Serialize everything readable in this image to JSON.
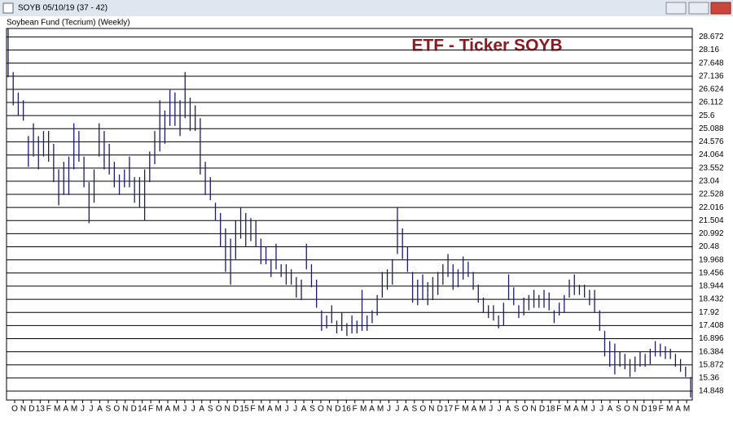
{
  "window_title": "SOYB 05/10/19 (37 - 42)",
  "chart_data": {
    "type": "hl-bar",
    "title": "Soybean Fund (Tecrium) (Weekly)",
    "annotation": "ETF - Ticker SOYB",
    "color": "#1c1c6b",
    "grid": true,
    "ylim": [
      14.5,
      29.0
    ],
    "yticks": [
      28.672,
      28.16,
      27.648,
      27.136,
      26.624,
      26.112,
      25.6,
      25.088,
      24.576,
      24.064,
      23.552,
      23.04,
      22.528,
      22.016,
      21.504,
      20.992,
      20.48,
      19.968,
      19.456,
      18.944,
      18.432,
      17.92,
      17.408,
      16.896,
      16.384,
      15.872,
      15.36,
      14.848
    ],
    "x_labels": [
      "O",
      "N",
      "D",
      "13",
      "F",
      "M",
      "A",
      "M",
      "J",
      "J",
      "A",
      "S",
      "O",
      "N",
      "D",
      "14",
      "F",
      "M",
      "A",
      "M",
      "J",
      "J",
      "A",
      "S",
      "O",
      "N",
      "D",
      "15",
      "F",
      "M",
      "A",
      "M",
      "J",
      "J",
      "A",
      "S",
      "O",
      "N",
      "D",
      "16",
      "F",
      "M",
      "A",
      "M",
      "J",
      "J",
      "A",
      "S",
      "O",
      "N",
      "D",
      "17",
      "F",
      "M",
      "A",
      "M",
      "J",
      "J",
      "A",
      "S",
      "O",
      "N",
      "D",
      "18",
      "F",
      "M",
      "A",
      "M",
      "J",
      "J",
      "A",
      "S",
      "O",
      "N",
      "D",
      "19",
      "F",
      "M",
      "A",
      "M"
    ],
    "high": [
      29,
      27.3,
      26.5,
      26.2,
      24.8,
      25.3,
      24.8,
      25,
      25,
      24.5,
      23.5,
      23.8,
      24,
      25.3,
      25,
      24,
      23,
      23.5,
      25.3,
      25,
      24.5,
      23.8,
      23.3,
      23.5,
      24,
      23.2,
      23.2,
      23.5,
      24.2,
      25,
      26.2,
      25.8,
      26.6,
      26.5,
      26.2,
      27.3,
      26.3,
      26,
      25.5,
      23.8,
      23.2,
      22.2,
      21.8,
      21.2,
      20.8,
      21.5,
      22,
      21.8,
      21.6,
      21.5,
      20.8,
      20.5,
      20,
      20.6,
      19.8,
      19.8,
      19.6,
      19.3,
      19.2,
      20.6,
      19.8,
      19.2,
      18,
      17.8,
      18.2,
      17.6,
      17.9,
      17.5,
      17.8,
      17.6,
      18.8,
      17.8,
      18,
      18.6,
      19.5,
      19.6,
      20,
      22,
      21.2,
      20.5,
      19.5,
      19.2,
      19.4,
      19.1,
      19.3,
      19.5,
      19.8,
      20.2,
      19.8,
      19.6,
      20.1,
      19.9,
      19.5,
      19,
      18.5,
      18.2,
      18.2,
      17.8,
      18.3,
      19.4,
      18.9,
      18.2,
      18.5,
      18.6,
      18.8,
      18.6,
      18.8,
      18.7,
      18,
      18.3,
      18.6,
      19.2,
      19.4,
      19,
      19,
      18.8,
      18.8,
      18,
      17.2,
      16.8,
      16.7,
      16.4,
      16.3,
      16.1,
      16.2,
      16.4,
      16.3,
      16.5,
      16.8,
      16.7,
      16.6,
      16.5,
      16.3,
      16.1,
      15.8,
      15.4
    ],
    "low": [
      27.1,
      26,
      25.6,
      25.4,
      23.6,
      24,
      23.5,
      24,
      23.8,
      23,
      22.1,
      22.5,
      22.5,
      23.5,
      23.8,
      22.8,
      21.4,
      22.2,
      24,
      23.5,
      23.3,
      22.8,
      22.5,
      22.8,
      22.8,
      22.2,
      22,
      21.5,
      23,
      23.7,
      24.2,
      24.5,
      25.2,
      25.2,
      24.8,
      25.5,
      25,
      25,
      23.3,
      22.5,
      22.3,
      21.5,
      20.5,
      19.5,
      19,
      20,
      20.8,
      20.5,
      20.7,
      20.5,
      19.8,
      19.8,
      19.3,
      19.6,
      19.3,
      19,
      19,
      18.5,
      18.4,
      19.6,
      18.9,
      18.1,
      17.2,
      17.3,
      17.5,
      17.1,
      17.2,
      17,
      17.1,
      17.1,
      17.2,
      17.2,
      17.5,
      17.8,
      18.5,
      18.8,
      19,
      20.2,
      20,
      19.5,
      18.3,
      18.2,
      18.4,
      18.2,
      18.4,
      18.6,
      19,
      19.3,
      18.8,
      18.9,
      19.2,
      19.3,
      18.8,
      18.3,
      17.9,
      17.7,
      17.6,
      17.3,
      17.4,
      18.4,
      18.2,
      17.7,
      17.8,
      18,
      18.1,
      18.1,
      18.1,
      18,
      17.5,
      17.8,
      17.9,
      18.5,
      18.6,
      18.6,
      18.5,
      18.2,
      17.9,
      17.2,
      16.2,
      15.8,
      15.5,
      15.8,
      15.7,
      15.4,
      15.6,
      15.8,
      15.8,
      15.9,
      16.2,
      16.2,
      16.1,
      16.1,
      15.8,
      15.6,
      15.4,
      14.6
    ]
  }
}
